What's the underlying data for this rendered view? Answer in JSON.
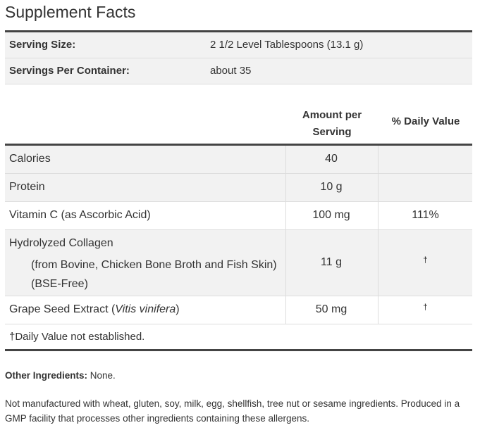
{
  "header": {
    "title": "Supplement Facts"
  },
  "serving": [
    {
      "label": "Serving Size:",
      "value": "2 1/2 Level Tablespoons (13.1 g)"
    },
    {
      "label": "Servings Per Container:",
      "value": "about 35"
    }
  ],
  "table": {
    "columns": [
      "Amount per Serving",
      "% Daily Value"
    ],
    "rows": [
      {
        "name": "Calories",
        "amount": "40",
        "dv": ""
      },
      {
        "name": "Protein",
        "amount": "10 g",
        "dv": ""
      },
      {
        "name": "Vitamin C (as Ascorbic Acid)",
        "amount": "100 mg",
        "dv": "111%"
      },
      {
        "name": "Hydrolyzed Collagen",
        "detail": "(from Bovine, Chicken Bone Broth and Fish Skin) (BSE-Free)",
        "amount": "11 g",
        "dv": "†"
      },
      {
        "name": "Grape Seed Extract (",
        "latin": "Vitis vinifera",
        "name_end": ")",
        "amount": "50 mg",
        "dv": "†"
      }
    ],
    "footnote": "†Daily Value not established."
  },
  "other_ingredients": {
    "label": "Other Ingredients:",
    "text": "None."
  },
  "allergen_note": "Not manufactured with wheat, gluten, soy, milk, egg, shellfish, tree nut or sesame ingredients. Produced in a GMP facility that processes other ingredients containing these allergens."
}
